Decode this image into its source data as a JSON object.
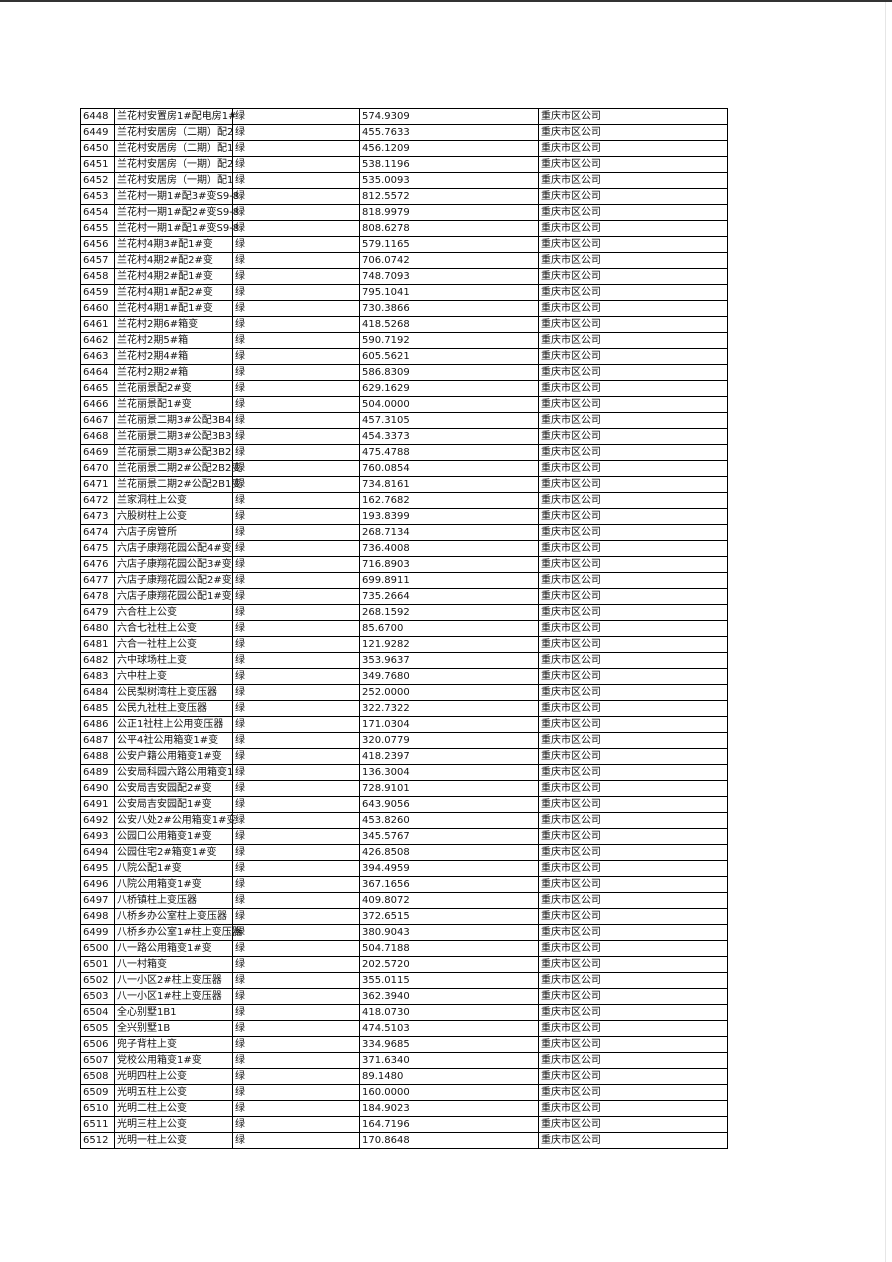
{
  "table": {
    "rows": [
      [
        "6448",
        "兰花村安置房1#配电房1#",
        "绿",
        "574.9309",
        "重庆市区公司"
      ],
      [
        "6449",
        "兰花村安居房（二期）配2",
        "绿",
        "455.7633",
        "重庆市区公司"
      ],
      [
        "6450",
        "兰花村安居房（二期）配1",
        "绿",
        "456.1209",
        "重庆市区公司"
      ],
      [
        "6451",
        "兰花村安居房（一期）配2",
        "绿",
        "538.1196",
        "重庆市区公司"
      ],
      [
        "6452",
        "兰花村安居房（一期）配1",
        "绿",
        "535.0093",
        "重庆市区公司"
      ],
      [
        "6453",
        "兰花村一期1#配3#变S9-8",
        "绿",
        "812.5572",
        "重庆市区公司"
      ],
      [
        "6454",
        "兰花村一期1#配2#变S9-8",
        "绿",
        "818.9979",
        "重庆市区公司"
      ],
      [
        "6455",
        "兰花村一期1#配1#变S9-8",
        "绿",
        "808.6278",
        "重庆市区公司"
      ],
      [
        "6456",
        "兰花村4期3#配1#变",
        "绿",
        "579.1165",
        "重庆市区公司"
      ],
      [
        "6457",
        "兰花村4期2#配2#变",
        "绿",
        "706.0742",
        "重庆市区公司"
      ],
      [
        "6458",
        "兰花村4期2#配1#变",
        "绿",
        "748.7093",
        "重庆市区公司"
      ],
      [
        "6459",
        "兰花村4期1#配2#变",
        "绿",
        "795.1041",
        "重庆市区公司"
      ],
      [
        "6460",
        "兰花村4期1#配1#变",
        "绿",
        "730.3866",
        "重庆市区公司"
      ],
      [
        "6461",
        "兰花村2期6#箱变",
        "绿",
        "418.5268",
        "重庆市区公司"
      ],
      [
        "6462",
        "兰花村2期5#箱",
        "绿",
        "590.7192",
        "重庆市区公司"
      ],
      [
        "6463",
        "兰花村2期4#箱",
        "绿",
        "605.5621",
        "重庆市区公司"
      ],
      [
        "6464",
        "兰花村2期2#箱",
        "绿",
        "586.8309",
        "重庆市区公司"
      ],
      [
        "6465",
        "兰花丽景配2#变",
        "绿",
        "629.1629",
        "重庆市区公司"
      ],
      [
        "6466",
        "兰花丽景配1#变",
        "绿",
        "504.0000",
        "重庆市区公司"
      ],
      [
        "6467",
        "兰花丽景二期3#公配3B4",
        "绿",
        "457.3105",
        "重庆市区公司"
      ],
      [
        "6468",
        "兰花丽景二期3#公配3B3",
        "绿",
        "454.3373",
        "重庆市区公司"
      ],
      [
        "6469",
        "兰花丽景二期3#公配3B2",
        "绿",
        "475.4788",
        "重庆市区公司"
      ],
      [
        "6470",
        "兰花丽景二期2#公配2B2变",
        "绿",
        "760.0854",
        "重庆市区公司"
      ],
      [
        "6471",
        "兰花丽景二期2#公配2B1变",
        "绿",
        "734.8161",
        "重庆市区公司"
      ],
      [
        "6472",
        "兰家洞柱上公变",
        "绿",
        "162.7682",
        "重庆市区公司"
      ],
      [
        "6473",
        "六股树柱上公变",
        "绿",
        "193.8399",
        "重庆市区公司"
      ],
      [
        "6474",
        "六店子房管所",
        "绿",
        "268.7134",
        "重庆市区公司"
      ],
      [
        "6475",
        "六店子康翔花园公配4#变",
        "绿",
        "736.4008",
        "重庆市区公司"
      ],
      [
        "6476",
        "六店子康翔花园公配3#变",
        "绿",
        "716.8903",
        "重庆市区公司"
      ],
      [
        "6477",
        "六店子康翔花园公配2#变",
        "绿",
        "699.8911",
        "重庆市区公司"
      ],
      [
        "6478",
        "六店子康翔花园公配1#变",
        "绿",
        "735.2664",
        "重庆市区公司"
      ],
      [
        "6479",
        "六合柱上公变",
        "绿",
        "268.1592",
        "重庆市区公司"
      ],
      [
        "6480",
        "六合七社柱上公变",
        "绿",
        "85.6700",
        "重庆市区公司"
      ],
      [
        "6481",
        "六合一社柱上公变",
        "绿",
        "121.9282",
        "重庆市区公司"
      ],
      [
        "6482",
        "六中球场柱上变",
        "绿",
        "353.9637",
        "重庆市区公司"
      ],
      [
        "6483",
        "六中柱上变",
        "绿",
        "349.7680",
        "重庆市区公司"
      ],
      [
        "6484",
        "公民梨树湾柱上变压器",
        "绿",
        "252.0000",
        "重庆市区公司"
      ],
      [
        "6485",
        "公民九社柱上变压器",
        "绿",
        "322.7322",
        "重庆市区公司"
      ],
      [
        "6486",
        "公正1社柱上公用变压器",
        "绿",
        "171.0304",
        "重庆市区公司"
      ],
      [
        "6487",
        "公平4社公用箱变1#变",
        "绿",
        "320.0779",
        "重庆市区公司"
      ],
      [
        "6488",
        "公安户籍公用箱变1#变",
        "绿",
        "418.2397",
        "重庆市区公司"
      ],
      [
        "6489",
        "公安局科园六路公用箱变1",
        "绿",
        "136.3004",
        "重庆市区公司"
      ],
      [
        "6490",
        "公安局吉安园配2#变",
        "绿",
        "728.9101",
        "重庆市区公司"
      ],
      [
        "6491",
        "公安局吉安园配1#变",
        "绿",
        "643.9056",
        "重庆市区公司"
      ],
      [
        "6492",
        "公安八处2#公用箱变1#变",
        "绿",
        "453.8260",
        "重庆市区公司"
      ],
      [
        "6493",
        "公园口公用箱变1#变",
        "绿",
        "345.5767",
        "重庆市区公司"
      ],
      [
        "6494",
        "公园住宅2#箱变1#变",
        "绿",
        "426.8508",
        "重庆市区公司"
      ],
      [
        "6495",
        "八院公配1#变",
        "绿",
        "394.4959",
        "重庆市区公司"
      ],
      [
        "6496",
        "八院公用箱变1#变",
        "绿",
        "367.1656",
        "重庆市区公司"
      ],
      [
        "6497",
        "八桥镇柱上变压器",
        "绿",
        "409.8072",
        "重庆市区公司"
      ],
      [
        "6498",
        "八桥乡办公室柱上变压器",
        "绿",
        "372.6515",
        "重庆市区公司"
      ],
      [
        "6499",
        "八桥乡办公室1#柱上变压器",
        "绿",
        "380.9043",
        "重庆市区公司"
      ],
      [
        "6500",
        "八一路公用箱变1#变",
        "绿",
        "504.7188",
        "重庆市区公司"
      ],
      [
        "6501",
        "八一村箱变",
        "绿",
        "202.5720",
        "重庆市区公司"
      ],
      [
        "6502",
        "八一小区2#柱上变压器",
        "绿",
        "355.0115",
        "重庆市区公司"
      ],
      [
        "6503",
        "八一小区1#柱上变压器",
        "绿",
        "362.3940",
        "重庆市区公司"
      ],
      [
        "6504",
        "全心别墅1B1",
        "绿",
        "418.0730",
        "重庆市区公司"
      ],
      [
        "6505",
        "全兴别墅1B",
        "绿",
        "474.5103",
        "重庆市区公司"
      ],
      [
        "6506",
        "兜子背柱上变",
        "绿",
        "334.9685",
        "重庆市区公司"
      ],
      [
        "6507",
        "党校公用箱变1#变",
        "绿",
        "371.6340",
        "重庆市区公司"
      ],
      [
        "6508",
        "光明四柱上公变",
        "绿",
        "89.1480",
        "重庆市区公司"
      ],
      [
        "6509",
        "光明五柱上公变",
        "绿",
        "160.0000",
        "重庆市区公司"
      ],
      [
        "6510",
        "光明二柱上公变",
        "绿",
        "184.9023",
        "重庆市区公司"
      ],
      [
        "6511",
        "光明三柱上公变",
        "绿",
        "164.7196",
        "重庆市区公司"
      ],
      [
        "6512",
        "光明一柱上公变",
        "绿",
        "170.8648",
        "重庆市区公司"
      ]
    ]
  }
}
